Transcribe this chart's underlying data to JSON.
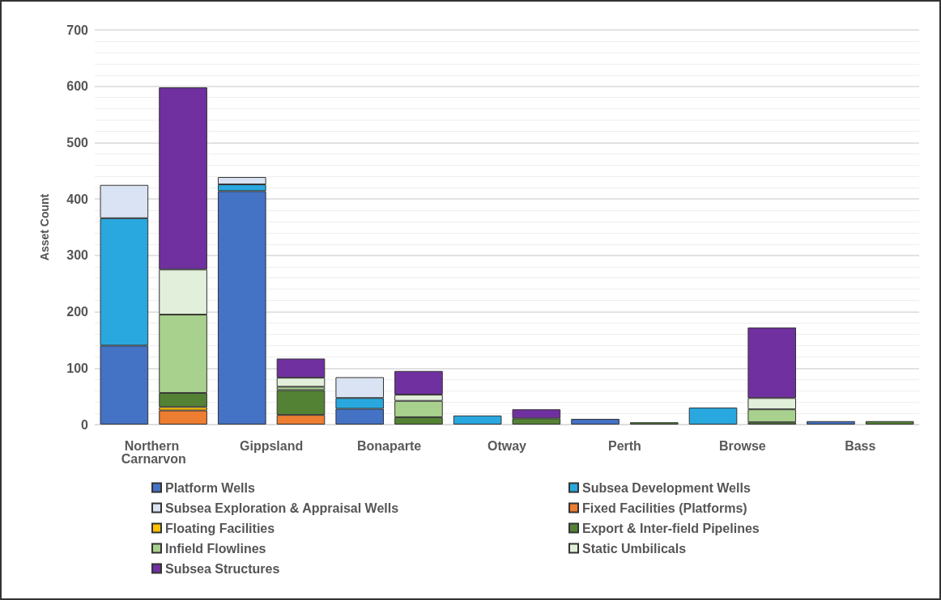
{
  "chart_data": {
    "type": "bar",
    "ylabel": "Asset Count",
    "stacked": true,
    "categories": [
      "Northern Carnarvon",
      null,
      "Gippsland",
      null,
      "Bonaparte",
      null,
      "Otway",
      null,
      "Perth",
      null,
      "Browse",
      null,
      "Bass",
      null
    ],
    "series": [
      {
        "name": "Platform Wells",
        "color": "#4472c4",
        "values": [
          140,
          null,
          414,
          null,
          28,
          null,
          null,
          null,
          10,
          null,
          null,
          null,
          6,
          null
        ]
      },
      {
        "name": "Subsea Development Wells",
        "color": "#29a8df",
        "values": [
          226,
          null,
          12,
          null,
          19,
          null,
          16,
          null,
          null,
          null,
          30,
          null,
          null,
          null
        ]
      },
      {
        "name": "Subsea Exploration & Appraisal Wells",
        "color": "#dae3f3",
        "values": [
          59,
          null,
          13,
          null,
          37,
          null,
          null,
          null,
          null,
          null,
          null,
          null,
          null,
          null
        ]
      },
      {
        "name": "Fixed Facilities (Platforms)",
        "color": "#ed7d31",
        "values": [
          null,
          25,
          null,
          17,
          null,
          null,
          null,
          null,
          null,
          null,
          null,
          null,
          null,
          null
        ]
      },
      {
        "name": "Floating Facilities",
        "color": "#ffc000",
        "values": [
          null,
          6,
          null,
          null,
          null,
          null,
          null,
          null,
          null,
          null,
          null,
          null,
          null,
          null
        ]
      },
      {
        "name": "Export & Inter-field Pipelines",
        "color": "#548235",
        "values": [
          null,
          25,
          null,
          44,
          null,
          13,
          null,
          11,
          null,
          4,
          null,
          4,
          null,
          6
        ]
      },
      {
        "name": "Infield Flowlines",
        "color": "#a9d18e",
        "values": [
          null,
          139,
          null,
          6,
          null,
          29,
          null,
          null,
          null,
          null,
          null,
          23,
          null,
          null
        ]
      },
      {
        "name": "Static Umbilicals",
        "color": "#e2efda",
        "values": [
          null,
          80,
          null,
          16,
          null,
          11,
          null,
          null,
          null,
          null,
          null,
          20,
          null,
          null
        ]
      },
      {
        "name": "Subsea Structures",
        "color": "#7030a0",
        "values": [
          null,
          323,
          null,
          34,
          null,
          42,
          null,
          16,
          null,
          null,
          null,
          125,
          null,
          null
        ]
      }
    ],
    "ylim": [
      0,
      700
    ],
    "yticks": [
      0,
      100,
      200,
      300,
      400,
      500,
      600,
      700
    ],
    "grid": "y",
    "legend": "bottom"
  }
}
